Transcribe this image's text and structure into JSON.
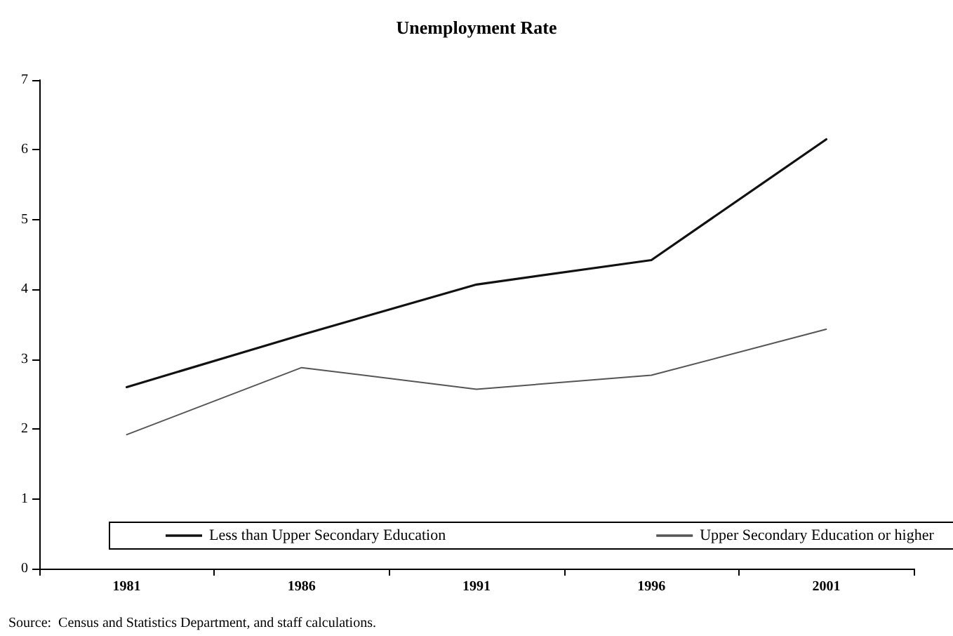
{
  "chart_data": {
    "type": "line",
    "title": "Unemployment Rate",
    "categories": [
      "1981",
      "1986",
      "1991",
      "1996",
      "2001"
    ],
    "series": [
      {
        "name": "Less than Upper Secondary Education",
        "color": "#111111",
        "values": [
          2.6,
          3.35,
          4.07,
          4.42,
          6.15
        ]
      },
      {
        "name": "Upper Secondary Education or higher",
        "color": "#555555",
        "values": [
          1.92,
          2.88,
          2.57,
          2.77,
          3.43
        ]
      }
    ],
    "ylim": [
      0,
      7
    ],
    "yticks": [
      0,
      1,
      2,
      3,
      4,
      5,
      6,
      7
    ],
    "grid": false,
    "legend": "bottom",
    "marker": "none",
    "line_style": "solid",
    "annotations": [
      "Source:  Census and Statistics Department, and staff calculations."
    ]
  }
}
